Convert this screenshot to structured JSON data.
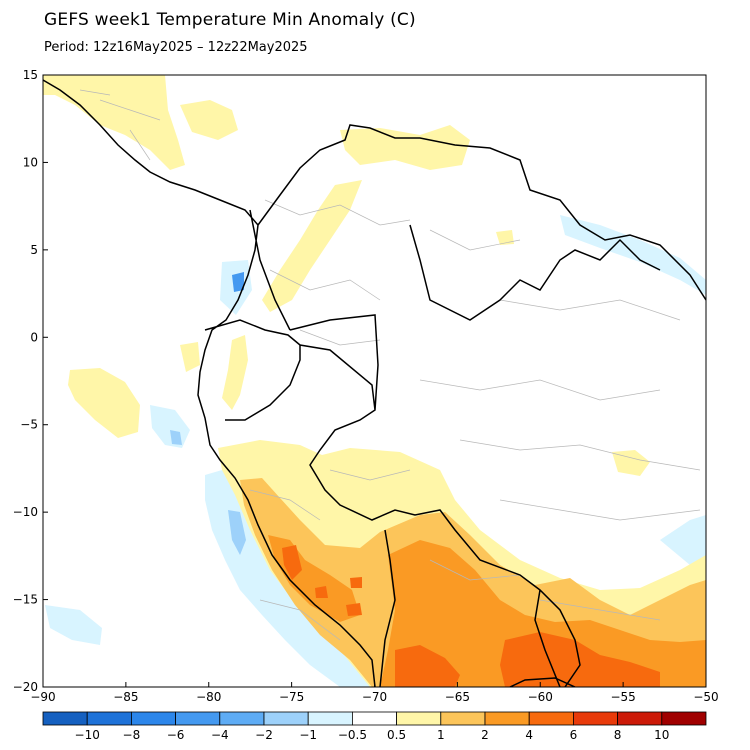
{
  "title": "GEFS week1 Temperature Min Anomaly (C)",
  "period": "Period: 12z16May2025 – 12z22May2025",
  "axes": {
    "lon_range": [
      -90,
      -50
    ],
    "lat_range": [
      -20,
      15
    ],
    "x_ticks": [
      {
        "value": -90,
        "label": "−90"
      },
      {
        "value": -85,
        "label": "−85"
      },
      {
        "value": -80,
        "label": "−80"
      },
      {
        "value": -75,
        "label": "−75"
      },
      {
        "value": -70,
        "label": "−70"
      },
      {
        "value": -65,
        "label": "−65"
      },
      {
        "value": -60,
        "label": "−60"
      },
      {
        "value": -55,
        "label": "−55"
      },
      {
        "value": -50,
        "label": "−50"
      }
    ],
    "y_ticks": [
      {
        "value": 15,
        "label": "15"
      },
      {
        "value": 10,
        "label": "10"
      },
      {
        "value": 5,
        "label": "5"
      },
      {
        "value": 0,
        "label": "0"
      },
      {
        "value": -5,
        "label": "−5"
      },
      {
        "value": -10,
        "label": "−10"
      },
      {
        "value": -15,
        "label": "−15"
      },
      {
        "value": -20,
        "label": "−20"
      }
    ]
  },
  "colorbar": {
    "colors": [
      "#1560c0",
      "#1e72d8",
      "#2c86ea",
      "#4499f0",
      "#5eacf5",
      "#9dd1fa",
      "#d8f4ff",
      "#ffffff",
      "#fff6a8",
      "#fcc55a",
      "#fa9a24",
      "#f76a0e",
      "#e83a0a",
      "#cc1a08",
      "#a00000"
    ],
    "labels": [
      "−10",
      "−8",
      "−6",
      "−4",
      "−2",
      "−1",
      "−0.5",
      "0.5",
      "1",
      "2",
      "4",
      "6",
      "8",
      "10"
    ]
  },
  "palette": {
    "pale_yellow": "#fff6a8",
    "yellow_orange": "#fcc55a",
    "orange": "#fa9a24",
    "dark_orange": "#f76a0e",
    "light_blue": "#d8f4ff",
    "mid_blue": "#9dd1fa",
    "blue": "#4499f0"
  }
}
